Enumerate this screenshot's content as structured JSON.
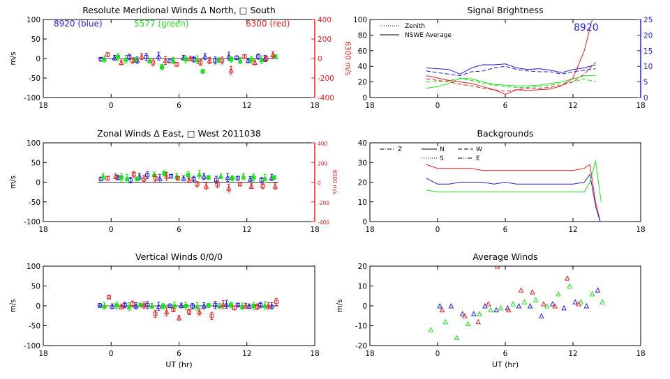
{
  "chart_data": [
    {
      "id": "meridional",
      "type": "scatter",
      "title": "Resolute Meridional Winds Δ North, □ South",
      "ylabel": "m/s",
      "ylim": [
        -100,
        100
      ],
      "yticks": [
        "100",
        "50",
        "0",
        "-50",
        "-100"
      ],
      "xticks": [
        "18",
        "0",
        "6",
        "12",
        "18"
      ],
      "legend_text": [
        {
          "text": "8920 (blue)",
          "color": "#2222cc"
        },
        {
          "text": "5577 (green)",
          "color": "#22dd22"
        },
        {
          "text": "6300 (red)",
          "color": "#dd2222"
        }
      ],
      "y2label": "6300 m/s",
      "y2ticks": [
        "400",
        "200",
        "0",
        "-200",
        "-400"
      ],
      "series": [
        {
          "color": "#2222cc",
          "x": [
            -0.9,
            0.3,
            1.6,
            2.3,
            3.1,
            4.2,
            5.2,
            6.4,
            7.3,
            8.3,
            9.2,
            10.4,
            11.1,
            12.1,
            13.0,
            13.6
          ],
          "y": [
            -2,
            2,
            4,
            -4,
            4,
            6,
            -6,
            2,
            -2,
            5,
            -5,
            6,
            2,
            -5,
            5,
            0
          ]
        },
        {
          "color": "#22dd22",
          "x": [
            -0.6,
            0.6,
            1.3,
            2.1,
            3.4,
            4.5,
            5.5,
            6.6,
            7.6,
            8.1,
            9.5,
            10.6,
            11.4,
            12.4,
            13.3,
            14.5
          ],
          "y": [
            -1,
            4,
            -2,
            -3,
            -5,
            -22,
            -5,
            -2,
            -3,
            -33,
            -4,
            -2,
            -5,
            -3,
            -3,
            5
          ]
        },
        {
          "color": "#dd2222",
          "x": [
            -0.3,
            0.9,
            1.9,
            2.7,
            3.7,
            4.8,
            5.8,
            7.0,
            7.9,
            8.7,
            9.8,
            10.6,
            11.8,
            12.7,
            13.7,
            14.3
          ],
          "y": [
            40,
            -40,
            -20,
            20,
            -40,
            -20,
            -60,
            0,
            -40,
            -20,
            -20,
            -120,
            20,
            -40,
            0,
            40
          ]
        }
      ]
    },
    {
      "id": "zonal",
      "type": "scatter",
      "title": "Zonal Winds Δ East, □ West 2011038",
      "ylabel": "m/s",
      "ylim": [
        -100,
        100
      ],
      "yticks": [
        "100",
        "50",
        "0",
        "-50",
        "-100"
      ],
      "xticks": [
        "18",
        "0",
        "6",
        "12",
        "18"
      ],
      "y2label": "6300 m/s",
      "y2ticks": [
        "400",
        "200",
        "0",
        "-200",
        "-400"
      ],
      "series": [
        {
          "color": "#2222cc",
          "x": [
            -0.9,
            0.6,
            1.7,
            2.5,
            3.2,
            4.3,
            5.3,
            6.4,
            7.3,
            8.2,
            9.3,
            10.3,
            11.2,
            12.3,
            13.3,
            14.2
          ],
          "y": [
            8,
            12,
            5,
            15,
            18,
            10,
            15,
            10,
            8,
            15,
            6,
            12,
            10,
            8,
            5,
            12
          ]
        },
        {
          "color": "#22dd22",
          "x": [
            -0.7,
            0.9,
            1.4,
            2.3,
            3.8,
            4.7,
            5.8,
            6.8,
            7.8,
            8.6,
            9.7,
            10.7,
            11.7,
            12.6,
            13.6,
            14.4
          ],
          "y": [
            15,
            12,
            10,
            8,
            20,
            22,
            15,
            18,
            20,
            12,
            15,
            10,
            15,
            12,
            10,
            12
          ]
        },
        {
          "color": "#dd2222",
          "x": [
            -0.3,
            0.4,
            2.0,
            2.9,
            3.9,
            4.9,
            5.9,
            6.9,
            7.6,
            8.4,
            9.4,
            10.4,
            11.4,
            12.4,
            13.4,
            14.5
          ],
          "y": [
            40,
            60,
            80,
            40,
            40,
            60,
            40,
            20,
            -20,
            -40,
            -20,
            -60,
            -20,
            -40,
            -40,
            -40
          ]
        }
      ]
    },
    {
      "id": "vertical",
      "type": "scatter",
      "title": "Vertical Winds 0/0/0",
      "ylabel": "m/s",
      "xlabel": "UT (hr)",
      "ylim": [
        -100,
        100
      ],
      "yticks": [
        "100",
        "50",
        "0",
        "-50",
        "-100"
      ],
      "xticks": [
        "18",
        "0",
        "6",
        "12",
        "18"
      ],
      "series": [
        {
          "color": "#2222cc",
          "x": [
            -1.0,
            0.1,
            1.2,
            2.2,
            3.2,
            4.2,
            5.2,
            6.2,
            7.2,
            8.2,
            9.2,
            10.2,
            11.2,
            12.2,
            13.2,
            14.2
          ],
          "y": [
            1,
            -1,
            2,
            0,
            2,
            -1,
            0,
            1,
            -1,
            0,
            2,
            4,
            2,
            -1,
            2,
            0
          ]
        },
        {
          "color": "#22dd22",
          "x": [
            -0.6,
            0.5,
            1.6,
            2.6,
            3.6,
            4.6,
            5.6,
            6.6,
            7.6,
            8.6,
            9.6,
            10.6,
            11.6,
            12.6,
            13.6
          ],
          "y": [
            0,
            1,
            -2,
            2,
            0,
            -1,
            2,
            0,
            -2,
            1,
            0,
            2,
            -1,
            0,
            1
          ]
        },
        {
          "color": "#dd2222",
          "x": [
            -0.2,
            0.9,
            1.9,
            2.9,
            3.9,
            4.9,
            5.5,
            6.0,
            6.9,
            7.8,
            8.9,
            9.9,
            10.9,
            11.9,
            12.9,
            13.9,
            14.6
          ],
          "y": [
            22,
            -2,
            5,
            2,
            -20,
            -15,
            -10,
            -30,
            -15,
            -15,
            -25,
            3,
            -5,
            0,
            -2,
            0,
            10
          ]
        }
      ]
    },
    {
      "id": "brightness",
      "type": "line",
      "title": "Signal Brightness",
      "ylim": [
        0,
        100
      ],
      "yticks": [
        "100",
        "80",
        "60",
        "40",
        "20",
        "0"
      ],
      "xticks": [
        "18",
        "0",
        "6",
        "12",
        "18"
      ],
      "y2ticks": [
        "25",
        "20",
        "15",
        "10",
        "5",
        "0"
      ],
      "legend": [
        "Zenith",
        "NSWE Average"
      ],
      "annotation": "8920",
      "series": [
        {
          "color": "#2222cc",
          "style": "solid",
          "x": [
            -1,
            0,
            1,
            2,
            3,
            4,
            5,
            6,
            7,
            8,
            9,
            10,
            11,
            12,
            13,
            14
          ],
          "y": [
            38,
            37,
            36,
            30,
            38,
            42,
            42,
            43,
            38,
            36,
            37,
            35,
            32,
            36,
            38,
            42
          ]
        },
        {
          "color": "#2222cc",
          "style": "dashed",
          "x": [
            -1,
            0,
            1,
            2,
            3,
            4,
            5,
            6,
            7,
            8,
            9,
            10,
            11,
            12,
            13,
            14
          ],
          "y": [
            34,
            32,
            30,
            28,
            33,
            34,
            38,
            40,
            36,
            34,
            33,
            33,
            30,
            33,
            35,
            37
          ]
        },
        {
          "color": "#22dd22",
          "style": "solid",
          "x": [
            -1,
            0,
            1,
            2,
            3,
            4,
            5,
            6,
            7,
            8,
            9,
            10,
            11,
            12,
            13,
            14
          ],
          "y": [
            12,
            14,
            18,
            25,
            24,
            20,
            17,
            16,
            15,
            15,
            16,
            18,
            20,
            24,
            28,
            28
          ]
        },
        {
          "color": "#22dd22",
          "style": "dashed",
          "x": [
            -1,
            0,
            1,
            2,
            3,
            4,
            5,
            6,
            7,
            8,
            9,
            10,
            11,
            12,
            13,
            14
          ],
          "y": [
            20,
            20,
            22,
            24,
            22,
            18,
            16,
            14,
            13,
            13,
            14,
            16,
            18,
            20,
            24,
            20
          ]
        },
        {
          "color": "#dd2222",
          "style": "solid",
          "x": [
            -1,
            0,
            1,
            2,
            3,
            4,
            5,
            6,
            7,
            8,
            9,
            10,
            11,
            12,
            13,
            13.6,
            14.2
          ],
          "y": [
            28,
            25,
            22,
            20,
            18,
            14,
            10,
            4,
            10,
            9,
            10,
            11,
            15,
            25,
            60,
            95,
            120
          ]
        },
        {
          "color": "#dd2222",
          "style": "dashed",
          "x": [
            -1,
            0,
            1,
            2,
            3,
            4,
            5,
            6,
            7,
            8,
            9,
            10,
            11,
            12,
            13,
            14
          ],
          "y": [
            24,
            22,
            20,
            17,
            15,
            12,
            10,
            8,
            10,
            12,
            12,
            13,
            16,
            20,
            30,
            45
          ]
        }
      ]
    },
    {
      "id": "backgrounds",
      "type": "line",
      "title": "Backgrounds",
      "ylim": [
        0,
        40
      ],
      "yticks": [
        "40",
        "30",
        "20",
        "10",
        "0"
      ],
      "xticks": [
        "18",
        "0",
        "6",
        "12",
        "18"
      ],
      "legend": [
        "Z",
        "N",
        "W",
        "S",
        "E"
      ],
      "series": [
        {
          "color": "#dd2222",
          "x": [
            -1,
            0,
            1,
            2,
            3,
            4,
            5,
            6,
            7,
            8,
            9,
            10,
            11,
            12,
            13,
            13.5,
            14,
            14.5
          ],
          "y": [
            29,
            27,
            27,
            27,
            27,
            26,
            26,
            26,
            26,
            26,
            26,
            26,
            26,
            26,
            27,
            29,
            10,
            -2
          ]
        },
        {
          "color": "#2222cc",
          "x": [
            -1,
            0,
            1,
            2,
            3,
            4,
            5,
            6,
            7,
            8,
            9,
            10,
            11,
            12,
            13,
            13.5,
            14,
            14.5
          ],
          "y": [
            22,
            19,
            19,
            20,
            20,
            20,
            19,
            20,
            19,
            19,
            19,
            19,
            19,
            19,
            20,
            24,
            8,
            -2
          ]
        },
        {
          "color": "#22dd22",
          "x": [
            -1,
            0,
            1,
            2,
            3,
            4,
            5,
            6,
            7,
            8,
            9,
            10,
            11,
            12,
            13,
            13.5,
            14,
            14.5
          ],
          "y": [
            16,
            15,
            15,
            15,
            15,
            15,
            15,
            15,
            15,
            15,
            15,
            15,
            15,
            15,
            15,
            20,
            31,
            10
          ]
        }
      ]
    },
    {
      "id": "average",
      "type": "scatter",
      "title": "Average Winds",
      "ylabel": "m/s",
      "xlabel": "UT (hr)",
      "ylim": [
        -20,
        20
      ],
      "yticks": [
        "20",
        "10",
        "0",
        "-10",
        "-20"
      ],
      "xticks": [
        "18",
        "0",
        "6",
        "12",
        "18"
      ],
      "series": [
        {
          "color": "#22dd22",
          "x": [
            -0.6,
            0.7,
            1.7,
            2.7,
            3.7,
            4.7,
            5.6,
            6.7,
            7.7,
            8.7,
            9.7,
            10.7,
            11.7,
            12.7,
            13.7,
            14.6
          ],
          "y": [
            -12,
            -8,
            -16,
            -9,
            -4,
            -2,
            -1,
            1,
            2,
            3,
            0,
            6,
            10,
            2,
            6,
            2
          ]
        },
        {
          "color": "#2222cc",
          "x": [
            0.2,
            1.2,
            2.2,
            3.2,
            4.2,
            5.2,
            6.2,
            7.2,
            8.2,
            9.2,
            10.2,
            11.2,
            12.2,
            13.2,
            14.2
          ],
          "y": [
            0,
            0,
            -4,
            -4,
            0,
            -2,
            -1,
            0,
            0,
            -5,
            1,
            -1,
            2,
            0,
            8
          ]
        },
        {
          "color": "#dd2222",
          "x": [
            0.4,
            2.4,
            3.6,
            4.5,
            5.3,
            6.3,
            7.4,
            8.4,
            9.4,
            10.4,
            11.5,
            12.5
          ],
          "y": [
            -2,
            -5,
            -8,
            1,
            20,
            -2,
            8,
            7,
            1,
            0,
            14,
            1
          ]
        }
      ]
    }
  ]
}
